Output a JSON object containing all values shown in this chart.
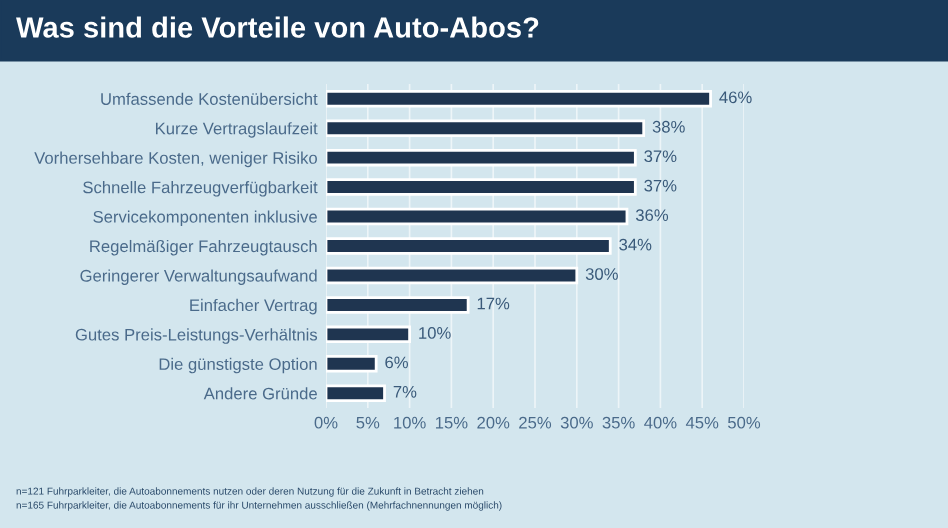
{
  "chart_data": {
    "type": "bar",
    "orientation": "horizontal",
    "title": "Was sind die Vorteile von Auto-Abos?",
    "categories": [
      "Umfassende Kostenübersicht",
      "Kurze Vertragslaufzeit",
      "Vorhersehbare Kosten, weniger Risiko",
      "Schnelle Fahrzeugverfügbarkeit",
      "Servicekomponenten inklusive",
      "Regelmäßiger Fahrzeugtausch",
      "Geringerer Verwaltungsaufwand",
      "Einfacher Vertrag",
      "Gutes Preis-Leistungs-Verhältnis",
      "Die günstigste Option",
      "Andere Gründe"
    ],
    "values": [
      46,
      38,
      37,
      37,
      36,
      34,
      30,
      17,
      10,
      6,
      7
    ],
    "value_labels": [
      "46%",
      "38%",
      "37%",
      "37%",
      "36%",
      "34%",
      "30%",
      "17%",
      "10%",
      "6%",
      "7%"
    ],
    "color": "#1f3550",
    "xlim": [
      0,
      50
    ],
    "xticks": [
      {
        "value": 0,
        "label": "0%"
      },
      {
        "value": 5,
        "label": "5%"
      },
      {
        "value": 10,
        "label": "10%"
      },
      {
        "value": 15,
        "label": "15%"
      },
      {
        "value": 20,
        "label": "20%"
      },
      {
        "value": 25,
        "label": "25%"
      },
      {
        "value": 30,
        "label": "30%"
      },
      {
        "value": 35,
        "label": "35%"
      },
      {
        "value": 40,
        "label": "40%"
      },
      {
        "value": 45,
        "label": "45%"
      },
      {
        "value": 50,
        "label": "50%"
      }
    ],
    "grid": "x",
    "legend": false,
    "annotations": [
      "n=121 Fuhrparkleiter, die Autoabonnements nutzen oder deren Nutzung für die Zukunft in Betracht ziehen",
      "n=165 Fuhrparkleiter, die Autoabonnements für ihr Unternehmen ausschließen (Mehrfachnennungen möglich)"
    ]
  }
}
